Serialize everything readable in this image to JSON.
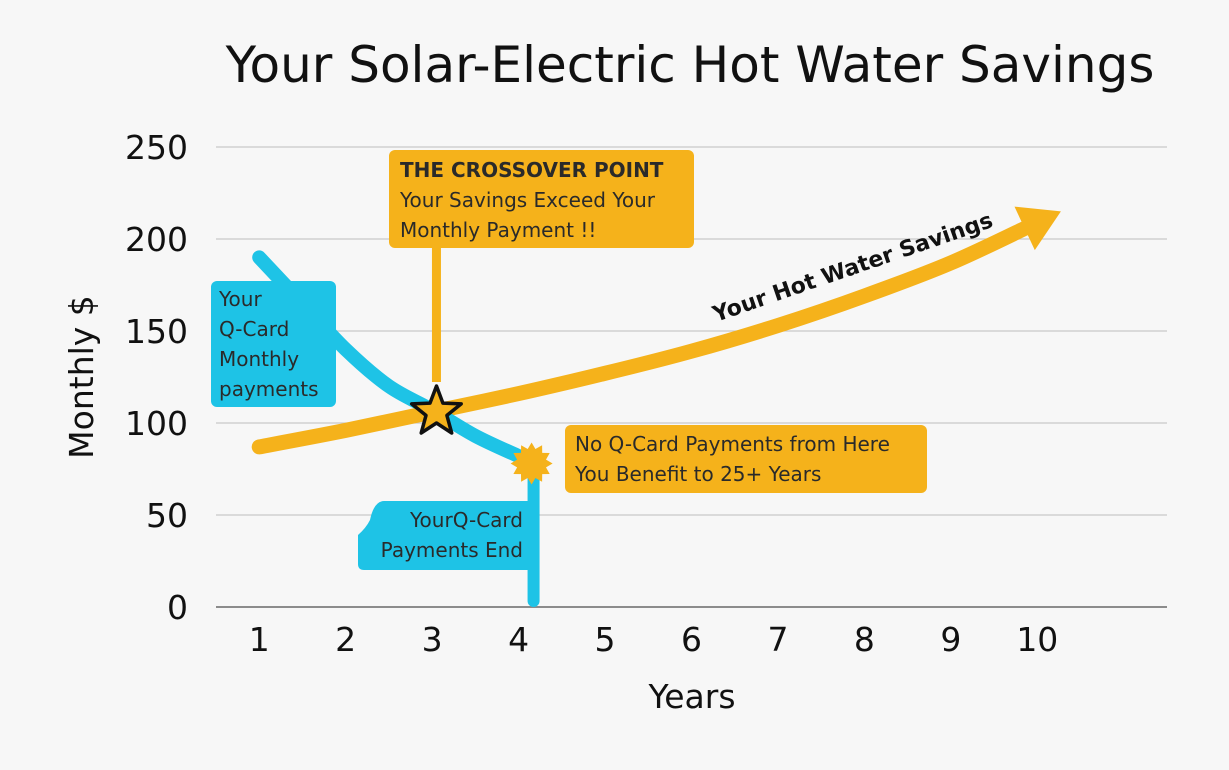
{
  "chart_data": {
    "type": "line",
    "title": "Your Solar-Electric Hot Water Savings",
    "xlabel": "Years",
    "ylabel": "Monthly $",
    "x_ticks": [
      "1",
      "2",
      "3",
      "4",
      "5",
      "6",
      "7",
      "8",
      "9",
      "10"
    ],
    "y_ticks": [
      "0",
      "50",
      "100",
      "150",
      "200",
      "250"
    ],
    "xlim": [
      0.5,
      11.5
    ],
    "ylim": [
      0,
      250
    ],
    "grid": true,
    "series": [
      {
        "name": "Your Hot Water Savings",
        "color": "#f5b21b",
        "x": [
          1,
          2,
          3,
          4,
          5,
          6,
          7,
          8,
          9,
          10
        ],
        "y": [
          87,
          96,
          106,
          116,
          127,
          139,
          153,
          169,
          187,
          209
        ]
      },
      {
        "name": "Q-Card Monthly payments",
        "color": "#1ec3e6",
        "x": [
          1,
          1.5,
          2,
          2.5,
          3,
          3.5,
          4,
          4.2
        ],
        "y": [
          190,
          165,
          140,
          120,
          107,
          93,
          82,
          78
        ]
      }
    ],
    "annotations": {
      "crossover_title": "THE CROSSOVER POINT",
      "crossover_line1": "Your Savings Exceed Your",
      "crossover_line2": "Monthly Payment !!",
      "qcard_line1": "Your",
      "qcard_line2": "Q-Card",
      "qcard_line3": "Monthly",
      "qcard_line4": "payments",
      "end_line1": "YourQ-Card",
      "end_line2": "Payments End",
      "benefit_line1": "No Q-Card Payments from Here",
      "benefit_line2": "You Benefit to 25+ Years"
    },
    "crossover": {
      "x": 3.05,
      "y": 106
    },
    "payments_end": {
      "x": 4.15,
      "y": 78
    }
  }
}
